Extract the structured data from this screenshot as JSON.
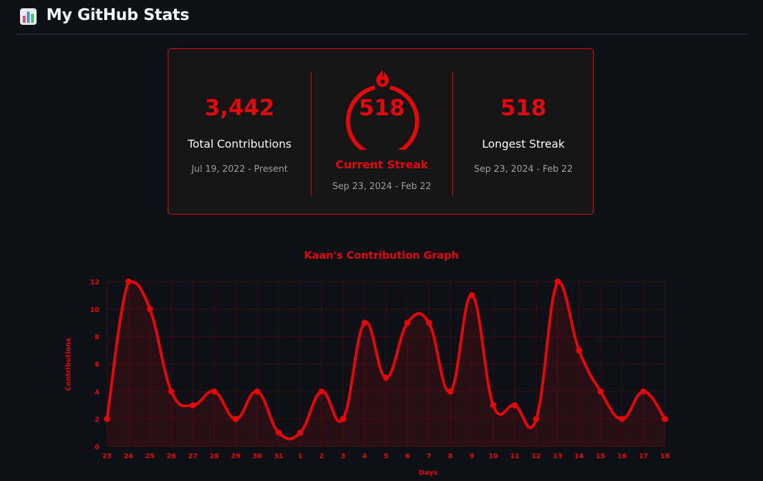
{
  "header": {
    "title": "My GitHub Stats",
    "icon": "bar-chart-icon"
  },
  "stats": {
    "total": {
      "value": "3,442",
      "label": "Total Contributions",
      "range": "Jul 19, 2022 - Present"
    },
    "current": {
      "value": "518",
      "label": "Current Streak",
      "range": "Sep 23, 2024 - Feb 22",
      "icon": "fire-icon"
    },
    "longest": {
      "value": "518",
      "label": "Longest Streak",
      "range": "Sep 23, 2024 - Feb 22"
    }
  },
  "colors": {
    "background": "#0d1117",
    "card": "#151515",
    "accent": "#e4080a",
    "text": "#fefefe",
    "muted": "#9e9e9e"
  },
  "chart_data": {
    "type": "area",
    "title": "Kaan's Contribution Graph",
    "xlabel": "Days",
    "ylabel": "Contributions",
    "categories": [
      "23",
      "24",
      "25",
      "26",
      "27",
      "28",
      "29",
      "30",
      "31",
      "1",
      "2",
      "3",
      "4",
      "5",
      "6",
      "7",
      "8",
      "9",
      "10",
      "11",
      "12",
      "13",
      "14",
      "15",
      "16",
      "17",
      "18"
    ],
    "values": [
      2,
      12,
      10,
      4,
      3,
      4,
      2,
      4,
      1,
      1,
      4,
      2,
      9,
      5,
      9,
      9,
      4,
      11,
      3,
      3,
      2,
      12,
      7,
      4,
      2,
      4,
      2
    ],
    "ylim": [
      0,
      12
    ],
    "yticks": [
      0,
      2,
      4,
      6,
      8,
      10,
      12
    ],
    "grid": true,
    "legend": "none"
  }
}
